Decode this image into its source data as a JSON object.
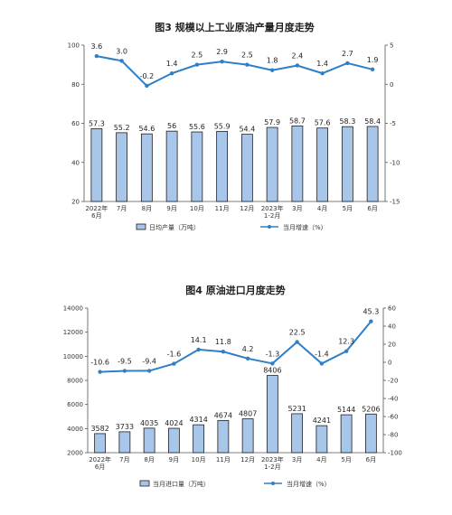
{
  "chart_data": [
    {
      "type": "bar+line",
      "title": "图3  规模以上工业原油产量月度走势",
      "categories": [
        [
          "2022年",
          "6月"
        ],
        [
          "7月"
        ],
        [
          "8月"
        ],
        [
          "9月"
        ],
        [
          "10月"
        ],
        [
          "11月"
        ],
        [
          "12月"
        ],
        [
          "2023年",
          "1-2月"
        ],
        [
          "3月"
        ],
        [
          "4月"
        ],
        [
          "5月"
        ],
        [
          "6月"
        ]
      ],
      "series": [
        {
          "name": "日均产量（万吨）",
          "type": "bar",
          "axis": "left",
          "values": [
            57.3,
            55.2,
            54.6,
            56.0,
            55.6,
            55.9,
            54.4,
            57.9,
            58.7,
            57.6,
            58.3,
            58.4
          ]
        },
        {
          "name": "当月增速（%）",
          "type": "line",
          "axis": "right",
          "values": [
            3.6,
            3.0,
            -0.2,
            1.4,
            2.5,
            2.9,
            2.5,
            1.8,
            2.4,
            1.4,
            2.7,
            1.9
          ]
        }
      ],
      "left_axis": {
        "min": 20,
        "max": 100,
        "ticks": [
          20,
          40,
          60,
          80,
          100
        ]
      },
      "right_axis": {
        "min": -15,
        "max": 5,
        "ticks": [
          -15,
          -10,
          -5,
          0,
          5
        ]
      },
      "legend_position": "bottom",
      "colors": {
        "bar_fill": "#a8c5ea",
        "bar_stroke": "#1f1f1f",
        "line": "#2e7fc6"
      }
    },
    {
      "type": "bar+line",
      "title": "图4  原油进口月度走势",
      "categories": [
        [
          "2022年",
          "6月"
        ],
        [
          "7月"
        ],
        [
          "8月"
        ],
        [
          "9月"
        ],
        [
          "10月"
        ],
        [
          "11月"
        ],
        [
          "12月"
        ],
        [
          "2023年",
          "1-2月"
        ],
        [
          "3月"
        ],
        [
          "4月"
        ],
        [
          "5月"
        ],
        [
          "6月"
        ]
      ],
      "series": [
        {
          "name": "当月进口量（万吨）",
          "type": "bar",
          "axis": "left",
          "values": [
            3582,
            3733,
            4035,
            4024,
            4314,
            4674,
            4807,
            8406,
            5231,
            4241,
            5144,
            5206
          ]
        },
        {
          "name": "当月增速（%）",
          "type": "line",
          "axis": "right",
          "values": [
            -10.6,
            -9.5,
            -9.4,
            -1.6,
            14.1,
            11.8,
            4.2,
            -1.3,
            22.5,
            -1.4,
            12.3,
            45.3
          ]
        }
      ],
      "left_axis": {
        "min": 2000,
        "max": 14000,
        "ticks": [
          2000,
          4000,
          6000,
          8000,
          10000,
          12000,
          14000
        ]
      },
      "right_axis": {
        "min": -100,
        "max": 60,
        "ticks": [
          -100,
          -80,
          -60,
          -40,
          -20,
          0,
          20,
          40,
          60
        ]
      },
      "legend_position": "bottom",
      "colors": {
        "bar_fill": "#a8c5ea",
        "bar_stroke": "#1f1f1f",
        "line": "#2e7fc6"
      }
    }
  ]
}
